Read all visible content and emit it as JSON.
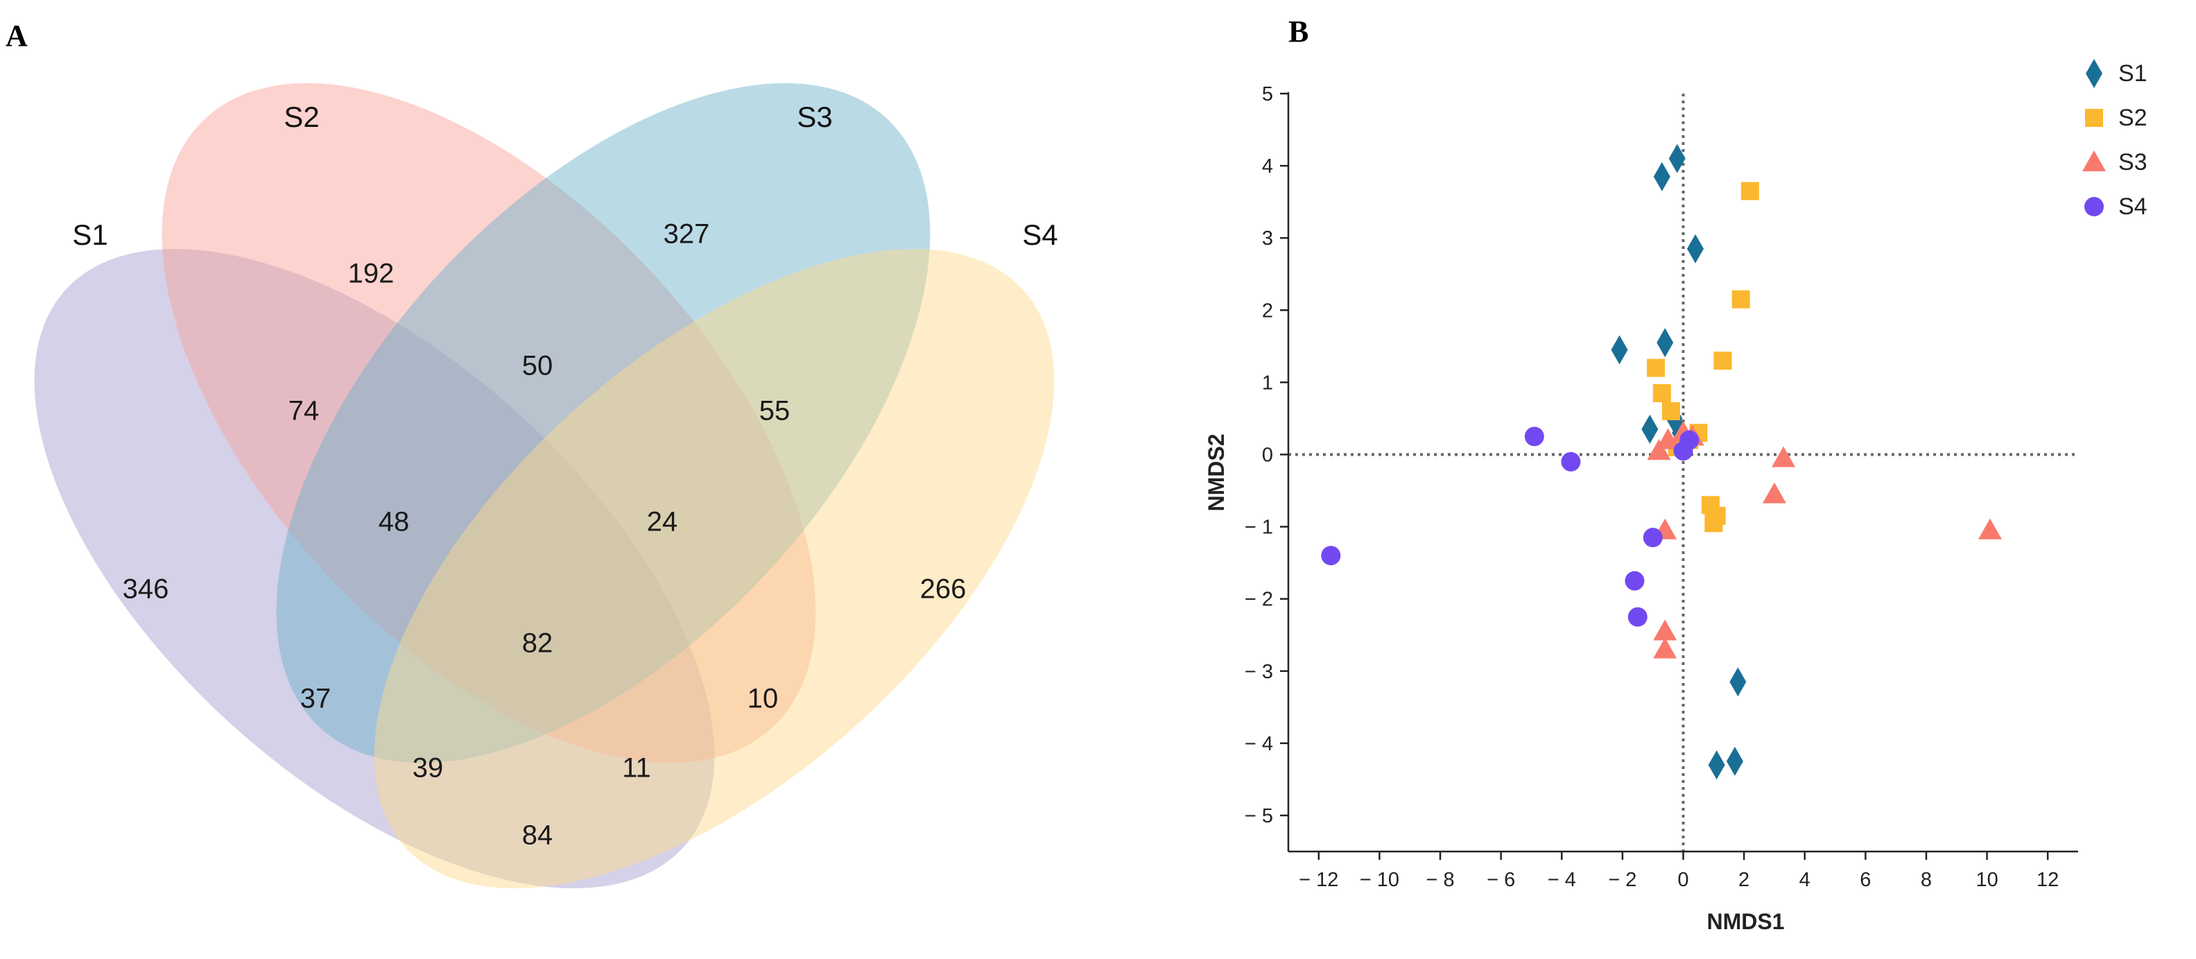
{
  "chart_data": [
    {
      "type": "venn",
      "panel_label": "A",
      "sets": [
        {
          "name": "S1",
          "color": "#a59fcf"
        },
        {
          "name": "S2",
          "color": "#f9a39b"
        },
        {
          "name": "S3",
          "color": "#6fb2cb"
        },
        {
          "name": "S4",
          "color": "#fdd98b"
        }
      ],
      "regions": [
        {
          "sets": [
            "S1"
          ],
          "value": "346"
        },
        {
          "sets": [
            "S2"
          ],
          "value": "192"
        },
        {
          "sets": [
            "S3"
          ],
          "value": "327"
        },
        {
          "sets": [
            "S4"
          ],
          "value": "266"
        },
        {
          "sets": [
            "S1",
            "S2"
          ],
          "value": "74"
        },
        {
          "sets": [
            "S2",
            "S3"
          ],
          "value": "50"
        },
        {
          "sets": [
            "S3",
            "S4"
          ],
          "value": "55"
        },
        {
          "sets": [
            "S1",
            "S2",
            "S3"
          ],
          "value": "48"
        },
        {
          "sets": [
            "S2",
            "S3",
            "S4"
          ],
          "value": "24"
        },
        {
          "sets": [
            "S1",
            "S2",
            "S3",
            "S4"
          ],
          "value": "82"
        },
        {
          "sets": [
            "S1",
            "S3"
          ],
          "value": "37"
        },
        {
          "sets": [
            "S2",
            "S4"
          ],
          "value": "10"
        },
        {
          "sets": [
            "S1",
            "S3",
            "S4"
          ],
          "value": "39"
        },
        {
          "sets": [
            "S1",
            "S2",
            "S4"
          ],
          "value": "11"
        },
        {
          "sets": [
            "S1",
            "S4"
          ],
          "value": "84"
        }
      ]
    },
    {
      "type": "scatter",
      "panel_label": "B",
      "xlabel": "NMDS1",
      "ylabel": "NMDS2",
      "xlim": [
        -13,
        13
      ],
      "ylim": [
        -5.5,
        5
      ],
      "xticks": [
        -12,
        -10,
        -8,
        -6,
        -4,
        -2,
        0,
        2,
        4,
        6,
        8,
        10,
        12
      ],
      "yticks": [
        -5,
        -4,
        -3,
        -2,
        -1,
        0,
        1,
        2,
        3,
        4,
        5
      ],
      "tick_labels_x": [
        "− 12",
        "− 10",
        "− 8",
        "− 6",
        "− 4",
        "− 2",
        "0",
        "2",
        "4",
        "6",
        "8",
        "10",
        "12"
      ],
      "tick_labels_y": [
        "− 5",
        "− 4",
        "− 3",
        "− 2",
        "− 1",
        "0",
        "1",
        "2",
        "3",
        "4",
        "5"
      ],
      "reference_lines": {
        "x": 0,
        "y": 0,
        "style": "dotted"
      },
      "legend": "top-right",
      "series": [
        {
          "name": "S1",
          "marker": "diamond",
          "color": "#1a6f96",
          "x": [
            -0.2,
            -0.7,
            0.4,
            -2.1,
            -0.6,
            -0.3,
            -1.1,
            -0.1,
            1.8,
            1.1,
            1.7
          ],
          "y": [
            4.1,
            3.85,
            2.85,
            1.45,
            1.55,
            0.5,
            0.35,
            0.3,
            -3.15,
            -4.3,
            -4.25
          ]
        },
        {
          "name": "S2",
          "marker": "square",
          "color": "#fbb72f",
          "x": [
            2.2,
            1.9,
            1.3,
            -0.9,
            -0.7,
            -0.4,
            0.5,
            0.2,
            -0.2,
            0.9,
            1.1,
            1.0
          ],
          "y": [
            3.65,
            2.15,
            1.3,
            1.2,
            0.85,
            0.6,
            0.3,
            0.2,
            0.1,
            -0.7,
            -0.85,
            -0.95
          ],
          "label": "S2"
        },
        {
          "name": "S3",
          "marker": "triangle",
          "color": "#f87a6c",
          "x": [
            10.1,
            3.3,
            3.0,
            -0.8,
            -0.5,
            0.0,
            0.3,
            -0.6,
            -0.6,
            -0.6
          ],
          "y": [
            -1.05,
            -0.05,
            -0.55,
            0.05,
            0.2,
            0.3,
            0.25,
            -1.05,
            -2.45,
            -2.7
          ]
        },
        {
          "name": "S4",
          "marker": "circle",
          "color": "#7249f0",
          "x": [
            -11.6,
            -4.9,
            -3.7,
            -1.0,
            -1.6,
            -1.5,
            0.0,
            0.2
          ],
          "y": [
            -1.4,
            0.25,
            -0.1,
            -1.15,
            -1.75,
            -2.25,
            0.05,
            0.2
          ]
        }
      ]
    }
  ]
}
